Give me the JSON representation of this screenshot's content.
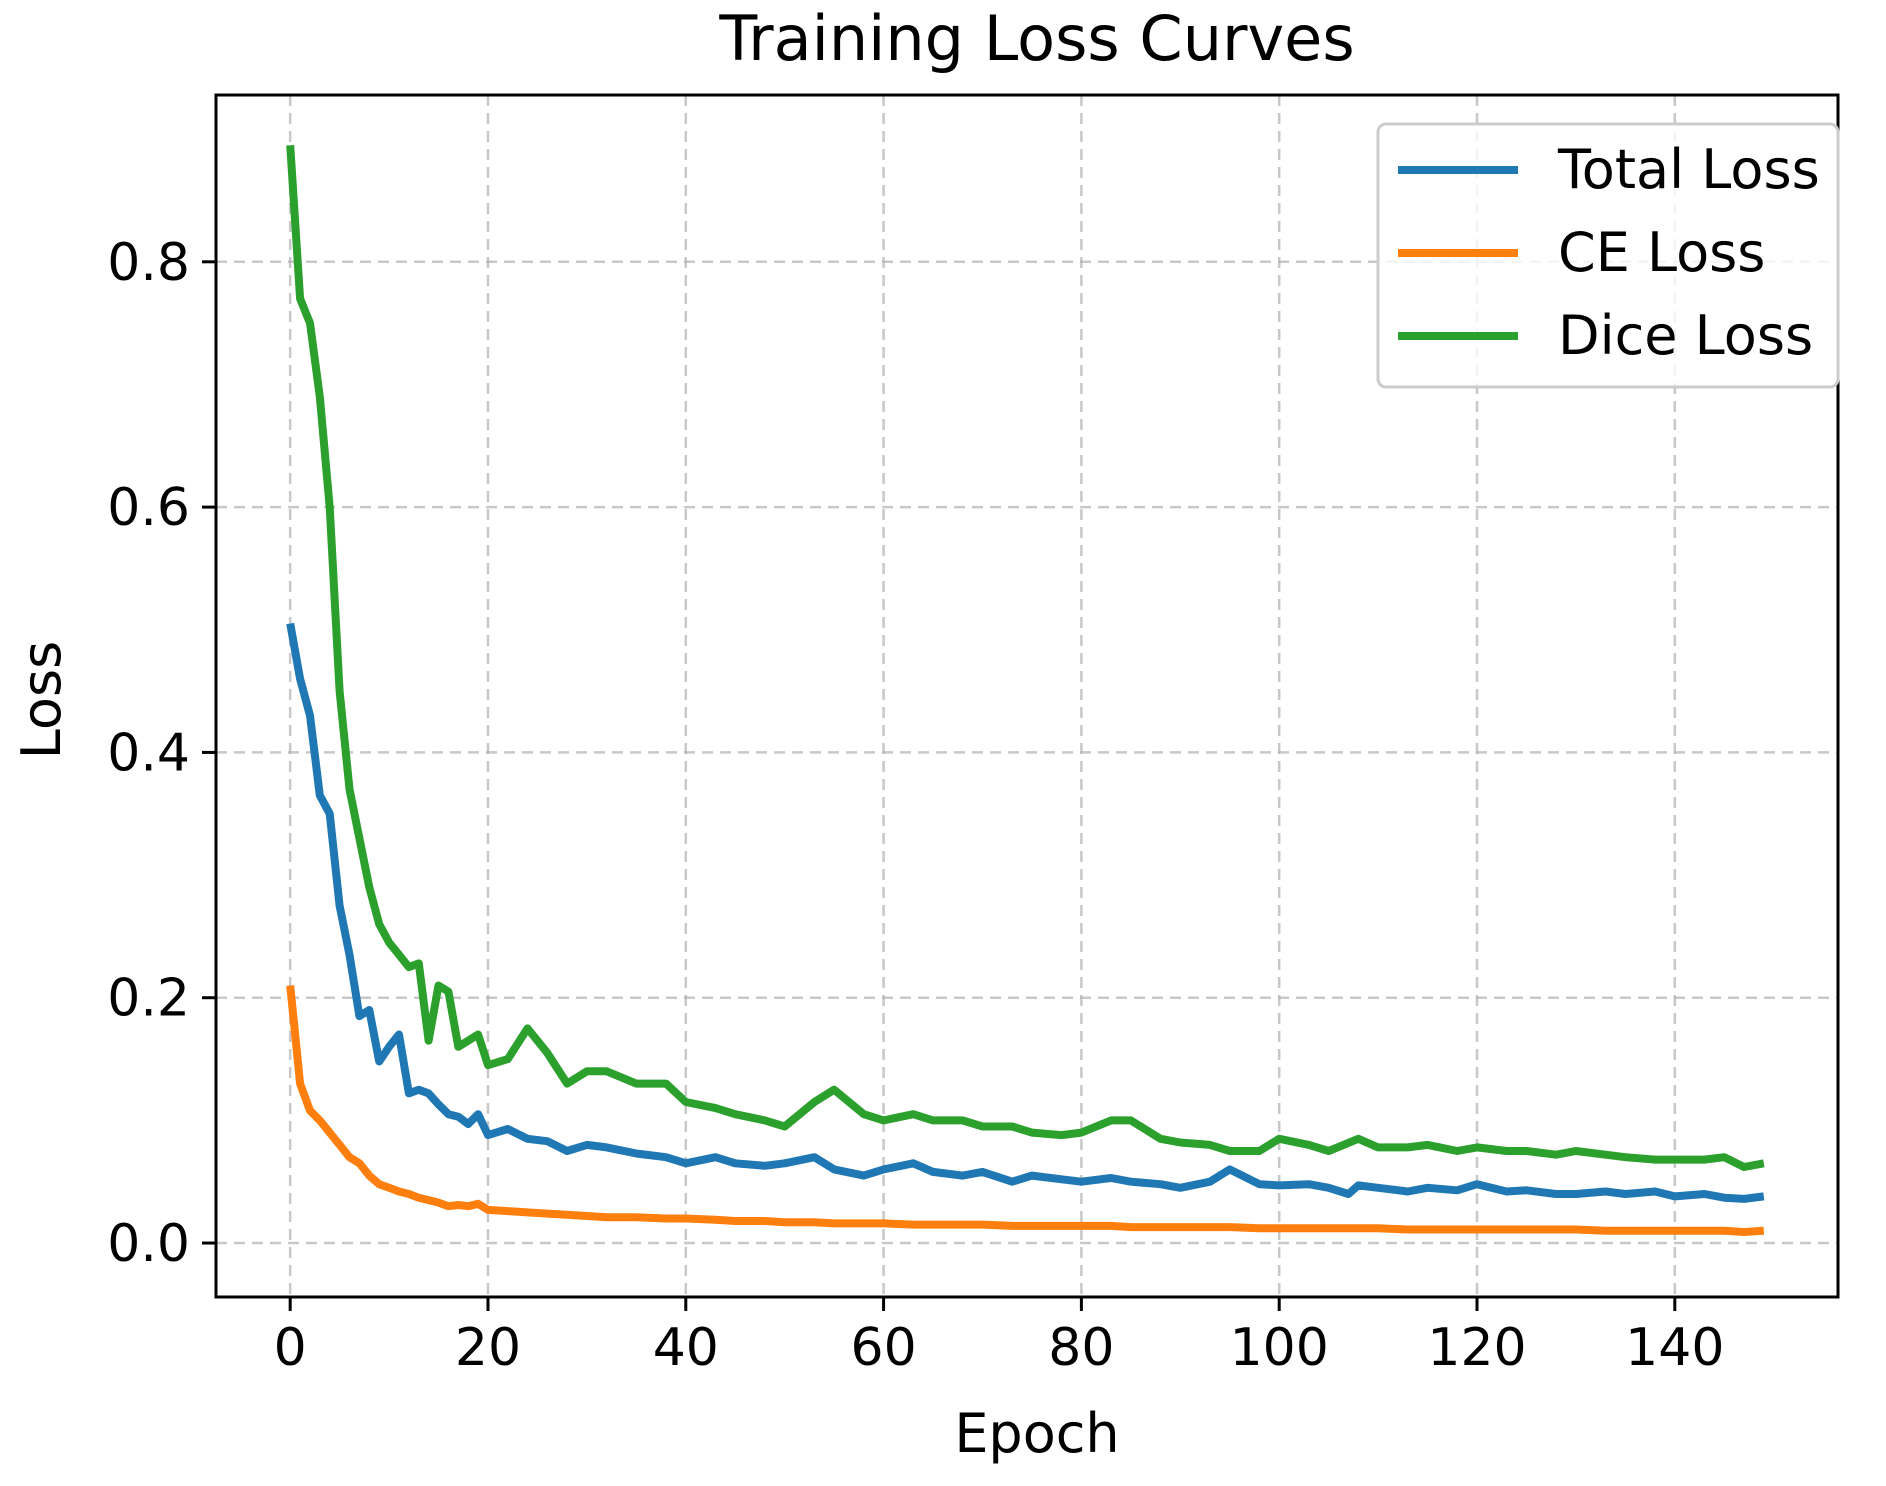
{
  "chart_data": {
    "type": "line",
    "title": "Training Loss Curves",
    "xlabel": "Epoch",
    "ylabel": "Loss",
    "xlim": [
      -7.5,
      156.5
    ],
    "ylim": [
      -0.044,
      0.936
    ],
    "xticks": [
      0,
      20,
      40,
      60,
      80,
      100,
      120,
      140
    ],
    "xtick_labels": [
      "0",
      "20",
      "40",
      "60",
      "80",
      "100",
      "120",
      "140"
    ],
    "yticks": [
      0.0,
      0.2,
      0.4,
      0.6,
      0.8
    ],
    "ytick_labels": [
      "0.0",
      "0.2",
      "0.4",
      "0.6",
      "0.8"
    ],
    "grid": true,
    "legend_position": "top-right",
    "series": [
      {
        "name": "Total Loss",
        "color": "#1f77b4",
        "x": [
          0,
          1,
          2,
          3,
          4,
          5,
          6,
          7,
          8,
          9,
          10,
          11,
          12,
          13,
          14,
          15,
          16,
          17,
          18,
          19,
          20,
          22,
          24,
          26,
          28,
          30,
          32,
          35,
          38,
          40,
          43,
          45,
          48,
          50,
          53,
          55,
          58,
          60,
          63,
          65,
          68,
          70,
          73,
          75,
          78,
          80,
          83,
          85,
          88,
          90,
          93,
          95,
          98,
          100,
          103,
          105,
          107,
          108,
          110,
          113,
          115,
          118,
          120,
          123,
          125,
          128,
          130,
          133,
          135,
          138,
          140,
          143,
          145,
          147,
          149
        ],
        "values": [
          0.505,
          0.46,
          0.43,
          0.365,
          0.35,
          0.275,
          0.235,
          0.185,
          0.19,
          0.148,
          0.16,
          0.17,
          0.122,
          0.125,
          0.122,
          0.113,
          0.105,
          0.103,
          0.097,
          0.105,
          0.088,
          0.093,
          0.085,
          0.083,
          0.075,
          0.08,
          0.078,
          0.073,
          0.07,
          0.065,
          0.07,
          0.065,
          0.063,
          0.065,
          0.07,
          0.06,
          0.055,
          0.06,
          0.065,
          0.058,
          0.055,
          0.058,
          0.05,
          0.055,
          0.052,
          0.05,
          0.053,
          0.05,
          0.048,
          0.045,
          0.05,
          0.06,
          0.048,
          0.047,
          0.048,
          0.045,
          0.04,
          0.047,
          0.045,
          0.042,
          0.045,
          0.043,
          0.048,
          0.042,
          0.043,
          0.04,
          0.04,
          0.042,
          0.04,
          0.042,
          0.038,
          0.04,
          0.037,
          0.036,
          0.038
        ]
      },
      {
        "name": "CE Loss",
        "color": "#ff7f0e",
        "x": [
          0,
          1,
          2,
          3,
          4,
          5,
          6,
          7,
          8,
          9,
          10,
          11,
          12,
          13,
          14,
          15,
          16,
          17,
          18,
          19,
          20,
          22,
          24,
          26,
          28,
          30,
          32,
          35,
          38,
          40,
          43,
          45,
          48,
          50,
          53,
          55,
          58,
          60,
          63,
          65,
          68,
          70,
          73,
          75,
          78,
          80,
          83,
          85,
          88,
          90,
          93,
          95,
          98,
          100,
          103,
          105,
          108,
          110,
          113,
          115,
          118,
          120,
          123,
          125,
          128,
          130,
          133,
          135,
          138,
          140,
          143,
          145,
          147,
          149
        ],
        "values": [
          0.21,
          0.13,
          0.108,
          0.1,
          0.09,
          0.08,
          0.07,
          0.065,
          0.055,
          0.048,
          0.045,
          0.042,
          0.04,
          0.037,
          0.035,
          0.033,
          0.03,
          0.031,
          0.03,
          0.032,
          0.027,
          0.026,
          0.025,
          0.024,
          0.023,
          0.022,
          0.021,
          0.021,
          0.02,
          0.02,
          0.019,
          0.018,
          0.018,
          0.017,
          0.017,
          0.016,
          0.016,
          0.016,
          0.015,
          0.015,
          0.015,
          0.015,
          0.014,
          0.014,
          0.014,
          0.014,
          0.014,
          0.013,
          0.013,
          0.013,
          0.013,
          0.013,
          0.012,
          0.012,
          0.012,
          0.012,
          0.012,
          0.012,
          0.011,
          0.011,
          0.011,
          0.011,
          0.011,
          0.011,
          0.011,
          0.011,
          0.01,
          0.01,
          0.01,
          0.01,
          0.01,
          0.01,
          0.009,
          0.01
        ]
      },
      {
        "name": "Dice Loss",
        "color": "#2ca02c",
        "x": [
          0,
          1,
          2,
          3,
          4,
          5,
          6,
          7,
          8,
          9,
          10,
          11,
          12,
          13,
          14,
          15,
          16,
          17,
          18,
          19,
          20,
          22,
          24,
          26,
          28,
          30,
          32,
          35,
          38,
          40,
          43,
          45,
          48,
          50,
          53,
          55,
          58,
          60,
          63,
          65,
          68,
          70,
          73,
          75,
          78,
          80,
          83,
          85,
          88,
          90,
          93,
          95,
          98,
          100,
          103,
          105,
          108,
          110,
          113,
          115,
          118,
          120,
          123,
          125,
          128,
          130,
          133,
          135,
          138,
          140,
          143,
          145,
          147,
          149
        ],
        "values": [
          0.895,
          0.77,
          0.75,
          0.69,
          0.6,
          0.45,
          0.37,
          0.33,
          0.29,
          0.26,
          0.245,
          0.235,
          0.225,
          0.228,
          0.165,
          0.21,
          0.205,
          0.16,
          0.165,
          0.17,
          0.145,
          0.15,
          0.175,
          0.155,
          0.13,
          0.14,
          0.14,
          0.13,
          0.13,
          0.115,
          0.11,
          0.105,
          0.1,
          0.095,
          0.115,
          0.125,
          0.105,
          0.1,
          0.105,
          0.1,
          0.1,
          0.095,
          0.095,
          0.09,
          0.088,
          0.09,
          0.1,
          0.1,
          0.085,
          0.082,
          0.08,
          0.075,
          0.075,
          0.085,
          0.08,
          0.075,
          0.085,
          0.078,
          0.078,
          0.08,
          0.075,
          0.078,
          0.075,
          0.075,
          0.072,
          0.075,
          0.072,
          0.07,
          0.068,
          0.068,
          0.068,
          0.07,
          0.062,
          0.065
        ]
      }
    ]
  }
}
